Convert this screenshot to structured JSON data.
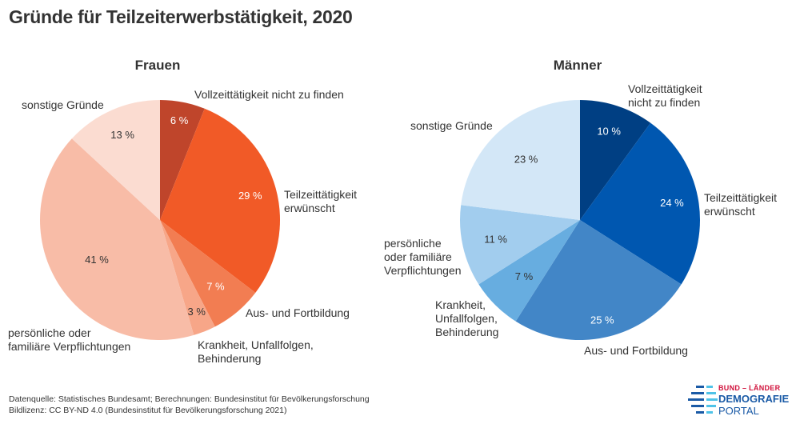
{
  "title": "Gründe für Teilzeiterwerbstätigkeit, 2020",
  "chart_data": [
    {
      "type": "pie",
      "title": "Frauen",
      "unit": "%",
      "start": "top",
      "direction": "clockwise",
      "slices": [
        {
          "label": "Vollzeittätigkeit nicht zu finden",
          "label_lines": [
            "Vollzeittätigkeit nicht zu finden"
          ],
          "value": 6,
          "value_label": "6 %",
          "color": "#bf452b",
          "value_color": "#ffffff"
        },
        {
          "label": "Teilzeittätigkeit erwünscht",
          "label_lines": [
            "Teilzeittätigkeit",
            "erwünscht"
          ],
          "value": 29,
          "value_label": "29 %",
          "color": "#f15a27",
          "value_color": "#ffffff"
        },
        {
          "label": "Aus- und Fortbildung",
          "label_lines": [
            "Aus- und Fortbildung"
          ],
          "value": 7,
          "value_label": "7 %",
          "color": "#f27d52",
          "value_color": "#ffffff"
        },
        {
          "label": "Krankheit, Unfallfolgen, Behinderung",
          "label_lines": [
            "Krankheit, Unfallfolgen,",
            "Behinderung"
          ],
          "value": 3,
          "value_label": "3 %",
          "color": "#f7a688",
          "value_color": "#333333"
        },
        {
          "label": "persönliche oder familiäre Verpflichtungen",
          "label_lines": [
            "persönliche oder",
            "familiäre Verpflichtungen"
          ],
          "value": 41,
          "value_label": "41 %",
          "color": "#f8bca7",
          "value_color": "#333333"
        },
        {
          "label": "sonstige Gründe",
          "label_lines": [
            "sonstige Gründe"
          ],
          "value": 13,
          "value_label": "13 %",
          "color": "#fbdcd1",
          "value_color": "#333333"
        }
      ]
    },
    {
      "type": "pie",
      "title": "Männer",
      "unit": "%",
      "start": "top",
      "direction": "clockwise",
      "slices": [
        {
          "label": "Vollzeittätigkeit nicht zu finden",
          "label_lines": [
            "Vollzeittätigkeit",
            "nicht zu finden"
          ],
          "value": 10,
          "value_label": "10 %",
          "color": "#003f83",
          "value_color": "#ffffff"
        },
        {
          "label": "Teilzeittätigkeit erwünscht",
          "label_lines": [
            "Teilzeittätigkeit",
            "erwünscht"
          ],
          "value": 24,
          "value_label": "24 %",
          "color": "#0057b0",
          "value_color": "#ffffff"
        },
        {
          "label": "Aus- und Fortbildung",
          "label_lines": [
            "Aus- und Fortbildung"
          ],
          "value": 25,
          "value_label": "25 %",
          "color": "#4286c7",
          "value_color": "#ffffff"
        },
        {
          "label": "Krankheit, Unfallfolgen, Behinderung",
          "label_lines": [
            "Krankheit,",
            "Unfallfolgen,",
            "Behinderung"
          ],
          "value": 7,
          "value_label": "7 %",
          "color": "#67ade0",
          "value_color": "#333333"
        },
        {
          "label": "persönliche oder familiäre Verpflichtungen",
          "label_lines": [
            "persönliche",
            "oder familiäre",
            "Verpflichtungen"
          ],
          "value": 11,
          "value_label": "11 %",
          "color": "#a2cdee",
          "value_color": "#333333"
        },
        {
          "label": "sonstige Gründe",
          "label_lines": [
            "sonstige Gründe"
          ],
          "value": 23,
          "value_label": "23 %",
          "color": "#d3e7f7",
          "value_color": "#333333"
        }
      ]
    }
  ],
  "footer": {
    "source": "Datenquelle: Statistisches Bundesamt; Berechnungen: Bundesinstitut für Bevölkerungsforschung",
    "license": "Bildlizenz: CC BY-ND 4.0 (Bundesinstitut für Bevölkerungsforschung 2021)"
  },
  "logo": {
    "line1": "BUND – LÄNDER",
    "line2": "DEMOGRAFIE",
    "line3": "PORTAL",
    "colors": {
      "red": "#d0103a",
      "blue": "#1a5aa6",
      "light_blue": "#4fc3e8"
    }
  }
}
